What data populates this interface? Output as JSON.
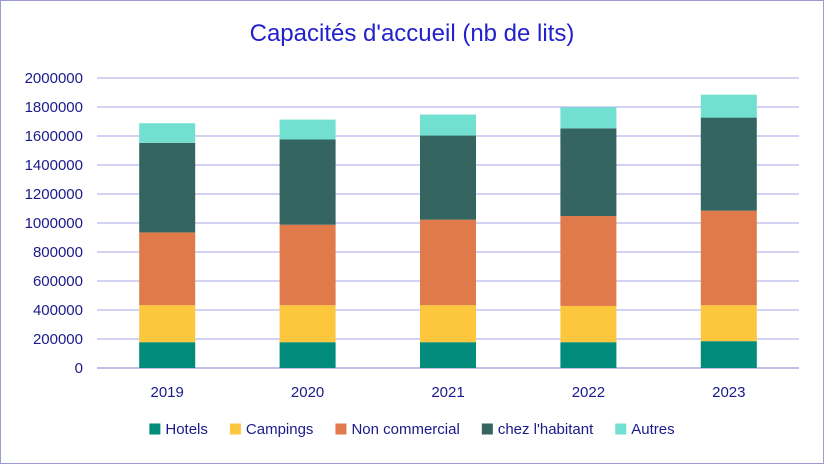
{
  "chart_data": {
    "type": "bar",
    "stacked": true,
    "title": "Capacités d'accueil (nb de lits)",
    "xlabel": "",
    "ylabel": "",
    "categories": [
      "2019",
      "2020",
      "2021",
      "2022",
      "2023"
    ],
    "ylim": [
      0,
      2000000
    ],
    "yticks": [
      "0",
      "200000",
      "400000",
      "600000",
      "800000",
      "1000000",
      "1200000",
      "1400000",
      "1600000",
      "1800000",
      "2000000"
    ],
    "grid": true,
    "legend_position": "bottom",
    "series": [
      {
        "name": "Hotels",
        "color": "#008b7a",
        "values": [
          178000,
          178000,
          178000,
          178000,
          185000
        ]
      },
      {
        "name": "Campings",
        "color": "#fcc73c",
        "values": [
          255000,
          255000,
          255000,
          250000,
          248000
        ]
      },
      {
        "name": "Non commercial",
        "color": "#e07a4a",
        "values": [
          502000,
          555000,
          590000,
          620000,
          652000
        ]
      },
      {
        "name": "chez l'habitant",
        "color": "#356560",
        "values": [
          618000,
          588000,
          580000,
          605000,
          642000
        ]
      },
      {
        "name": "Autres",
        "color": "#72e0d0",
        "values": [
          135000,
          137000,
          145000,
          145000,
          158000
        ]
      }
    ]
  }
}
